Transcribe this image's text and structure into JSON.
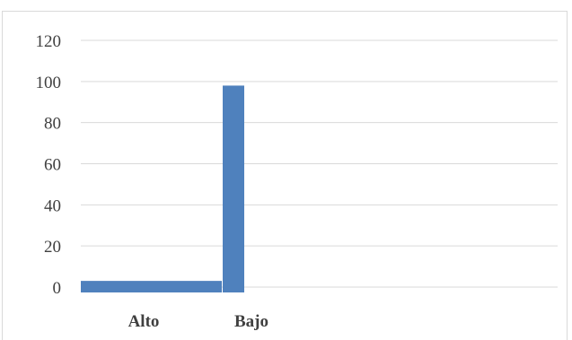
{
  "chart_data": {
    "type": "bar",
    "categories": [
      "Alto",
      "Bajo"
    ],
    "values": [
      3,
      98
    ],
    "title": "",
    "xlabel": "",
    "ylabel": "",
    "ylim": [
      0,
      120
    ],
    "yticks": [
      0,
      20,
      40,
      60,
      80,
      100,
      120
    ],
    "grid": true,
    "legend": "none",
    "colors": {
      "bar": "#4f81bd",
      "grid": "#d9d9d9",
      "text": "#404040"
    }
  }
}
